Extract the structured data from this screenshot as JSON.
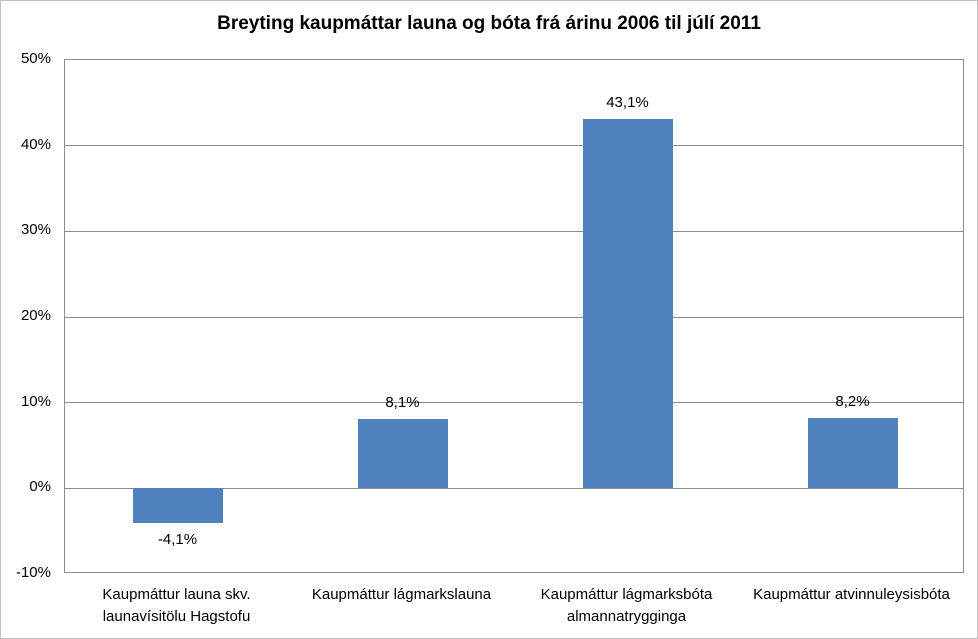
{
  "chart_data": {
    "type": "bar",
    "title": "Breyting kaupmáttar launa og bóta frá árinu 2006 til júlí 2011",
    "categories": [
      "Kaupmáttur launa skv. launavísitölu Hagstofu",
      "Kaupmáttur lágmarkslauna",
      "Kaupmáttur lágmarksbóta almannatrygginga",
      "Kaupmáttur atvinnuleysisbóta"
    ],
    "values": [
      -4.1,
      8.1,
      43.1,
      8.2
    ],
    "value_labels": [
      "-4,1%",
      "8,1%",
      "43,1%",
      "8,2%"
    ],
    "xlabel": "",
    "ylabel": "",
    "ylim": [
      -10,
      50
    ],
    "ytick_step": 10,
    "ytick_labels": [
      "50%",
      "40%",
      "30%",
      "20%",
      "10%",
      "0%",
      "-10%"
    ],
    "grid": true,
    "legend": false,
    "bar_color": "#4f81bd",
    "gridline_color": "#8c8c8c",
    "axis_text_color": "#000000",
    "background_color": "#ffffff"
  }
}
